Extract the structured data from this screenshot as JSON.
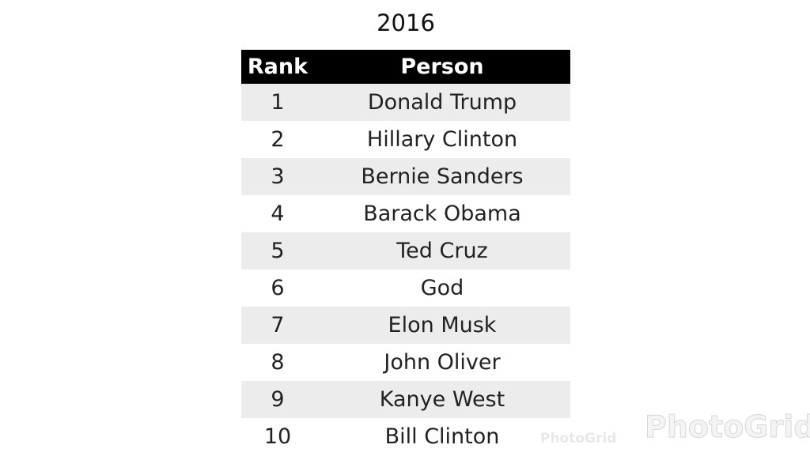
{
  "title": "2016",
  "table": {
    "header": [
      "Rank",
      "Person"
    ],
    "rows": [
      [
        1,
        "Donald Trump"
      ],
      [
        2,
        "Hillary Clinton"
      ],
      [
        3,
        "Bernie Sanders"
      ],
      [
        4,
        "Barack Obama"
      ],
      [
        5,
        "Ted Cruz"
      ],
      [
        6,
        "God"
      ],
      [
        7,
        "Elon Musk"
      ],
      [
        8,
        "John Oliver"
      ],
      [
        9,
        "Kanye West"
      ],
      [
        10,
        "Bill Clinton"
      ]
    ]
  },
  "watermark": [
    "PhotoGrid",
    "PhotoGrid"
  ]
}
